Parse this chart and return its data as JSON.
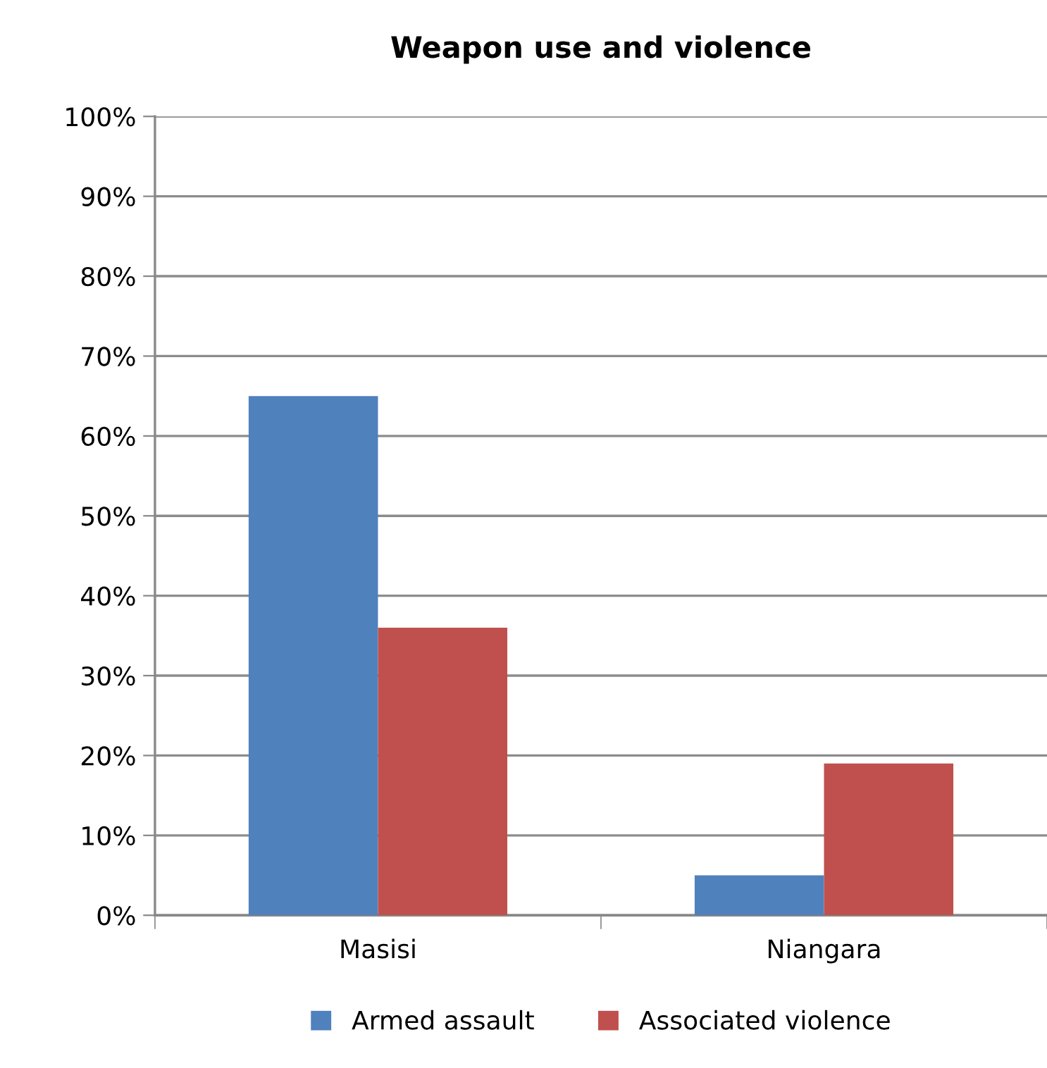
{
  "chart_data": {
    "type": "bar",
    "title": "Weapon use and violence",
    "categories": [
      "Masisi",
      "Niangara"
    ],
    "series": [
      {
        "name": "Armed assault",
        "color": "#4f81bd",
        "values": [
          65,
          5
        ]
      },
      {
        "name": "Associated violence",
        "color": "#c0504d",
        "values": [
          36,
          19
        ]
      }
    ],
    "ylim": [
      0,
      100
    ],
    "yticks": [
      {
        "value": 0,
        "label": "0%"
      },
      {
        "value": 10,
        "label": "10%"
      },
      {
        "value": 20,
        "label": "20%"
      },
      {
        "value": 30,
        "label": "30%"
      },
      {
        "value": 40,
        "label": "40%"
      },
      {
        "value": 50,
        "label": "50%"
      },
      {
        "value": 60,
        "label": "60%"
      },
      {
        "value": 70,
        "label": "70%"
      },
      {
        "value": 80,
        "label": "80%"
      },
      {
        "value": 90,
        "label": "90%"
      },
      {
        "value": 100,
        "label": "100%"
      }
    ],
    "grid": "y",
    "legend": "bottom"
  }
}
